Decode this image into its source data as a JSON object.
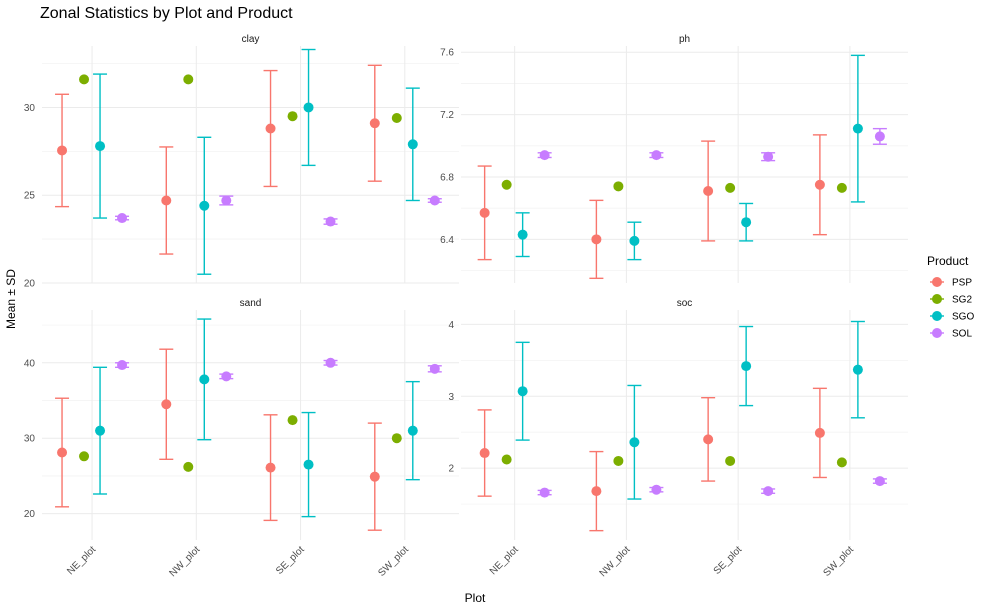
{
  "chart_data": {
    "type": "scatter",
    "title": "Zonal Statistics by Plot and Product",
    "xlabel": "Plot",
    "ylabel": "Mean ± SD",
    "categories": [
      "NE_plot",
      "NW_plot",
      "SE_plot",
      "SW_plot"
    ],
    "legend": {
      "title": "Product",
      "position": "right",
      "entries": [
        {
          "name": "PSP",
          "color": "#F8766D"
        },
        {
          "name": "SG2",
          "color": "#7CAE00"
        },
        {
          "name": "SGO",
          "color": "#00BFC4"
        },
        {
          "name": "SOL",
          "color": "#C77CFF"
        }
      ]
    },
    "grid": true,
    "panels": [
      {
        "name": "clay",
        "ylim": [
          20,
          33.5
        ],
        "yticks": [
          20,
          25,
          30
        ],
        "series": [
          {
            "name": "PSP",
            "mean": [
              27.55,
              24.7,
              28.8,
              29.1
            ],
            "sd": [
              3.2,
              3.05,
              3.3,
              3.3
            ]
          },
          {
            "name": "SG2",
            "mean": [
              31.6,
              31.6,
              29.5,
              29.4
            ],
            "sd": [
              0,
              0,
              0,
              0
            ]
          },
          {
            "name": "SGO",
            "mean": [
              27.8,
              24.4,
              30.0,
              27.9
            ],
            "sd": [
              4.1,
              3.9,
              3.3,
              3.2
            ]
          },
          {
            "name": "SOL",
            "mean": [
              23.7,
              24.7,
              23.5,
              24.7
            ],
            "sd": [
              0.1,
              0.25,
              0.15,
              0.1
            ]
          }
        ]
      },
      {
        "name": "ph",
        "ylim": [
          6.12,
          7.64
        ],
        "yticks": [
          6.4,
          6.8,
          7.2,
          7.6
        ],
        "series": [
          {
            "name": "PSP",
            "mean": [
              6.57,
              6.4,
              6.71,
              6.75
            ],
            "sd": [
              0.3,
              0.25,
              0.32,
              0.32
            ]
          },
          {
            "name": "SG2",
            "mean": [
              6.75,
              6.74,
              6.73,
              6.73
            ],
            "sd": [
              0,
              0,
              0,
              0
            ]
          },
          {
            "name": "SGO",
            "mean": [
              6.43,
              6.39,
              6.51,
              7.11
            ],
            "sd": [
              0.14,
              0.12,
              0.12,
              0.47
            ]
          },
          {
            "name": "SOL",
            "mean": [
              6.94,
              6.94,
              6.93,
              7.06
            ],
            "sd": [
              0.015,
              0.015,
              0.025,
              0.05
            ]
          }
        ]
      },
      {
        "name": "sand",
        "ylim": [
          16.5,
          47
        ],
        "yticks": [
          20,
          30,
          40
        ],
        "series": [
          {
            "name": "PSP",
            "mean": [
              28.1,
              34.5,
              26.1,
              24.9
            ],
            "sd": [
              7.2,
              7.3,
              7.0,
              7.1
            ]
          },
          {
            "name": "SG2",
            "mean": [
              27.6,
              26.2,
              32.4,
              30.0
            ],
            "sd": [
              0,
              0,
              0,
              0
            ]
          },
          {
            "name": "SGO",
            "mean": [
              31.0,
              37.8,
              26.5,
              31.0
            ],
            "sd": [
              8.4,
              8.0,
              6.9,
              6.5
            ]
          },
          {
            "name": "SOL",
            "mean": [
              39.7,
              38.2,
              40.0,
              39.2
            ],
            "sd": [
              0.3,
              0.3,
              0.3,
              0.4
            ]
          }
        ]
      },
      {
        "name": "soc",
        "ylim": [
          1.0,
          4.2
        ],
        "yticks": [
          2,
          3,
          4
        ],
        "series": [
          {
            "name": "PSP",
            "mean": [
              2.21,
              1.68,
              2.4,
              2.49
            ],
            "sd": [
              0.6,
              0.55,
              0.58,
              0.62
            ]
          },
          {
            "name": "SG2",
            "mean": [
              2.12,
              2.1,
              2.1,
              2.08
            ],
            "sd": [
              0,
              0,
              0,
              0
            ]
          },
          {
            "name": "SGO",
            "mean": [
              3.07,
              2.36,
              3.42,
              3.37
            ],
            "sd": [
              0.68,
              0.79,
              0.55,
              0.67
            ]
          },
          {
            "name": "SOL",
            "mean": [
              1.66,
              1.7,
              1.68,
              1.82
            ],
            "sd": [
              0.03,
              0.03,
              0.03,
              0.03
            ]
          }
        ]
      }
    ]
  }
}
